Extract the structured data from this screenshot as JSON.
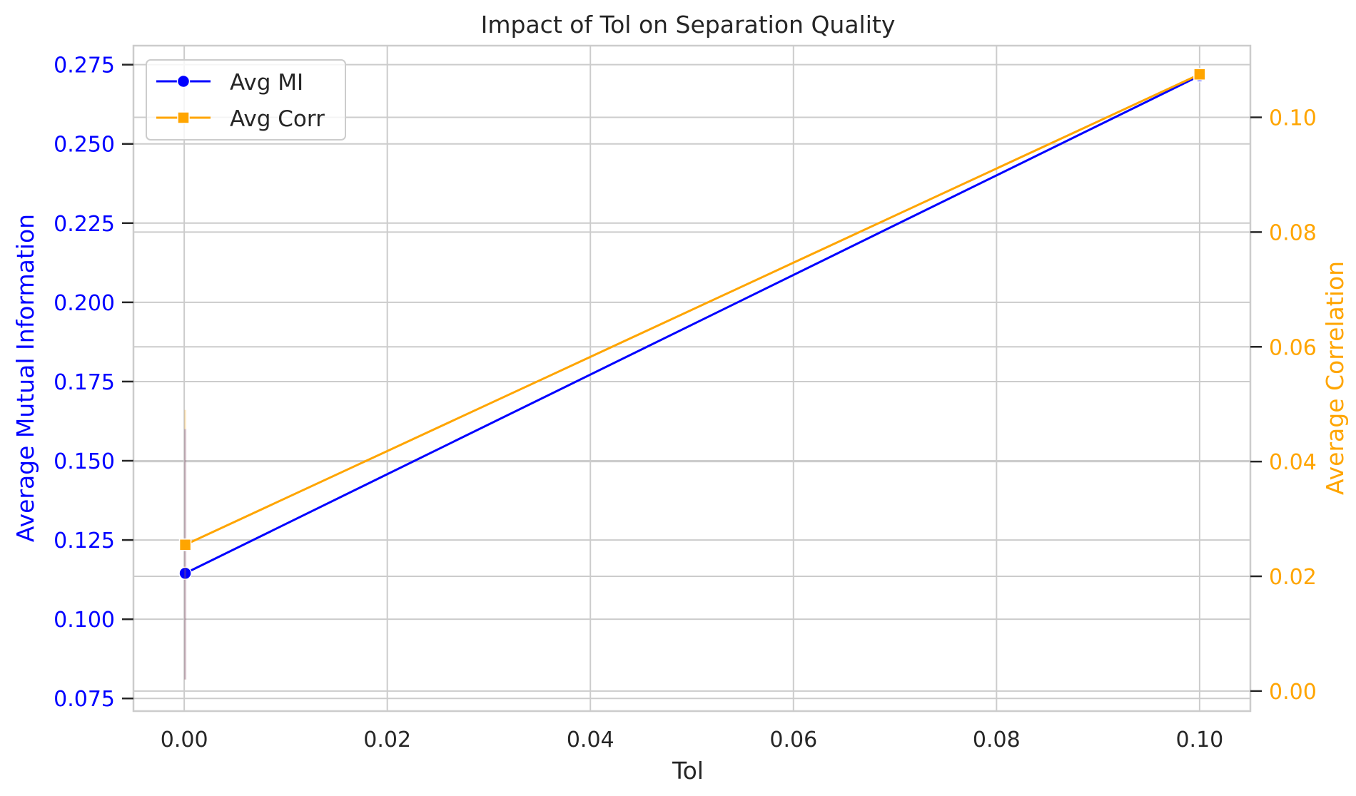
{
  "chart_data": {
    "type": "line",
    "title": "Impact of Tol on Separation Quality",
    "xlabel": "Tol",
    "ylabel_left": "Average Mutual Information",
    "ylabel_right": "Average Correlation",
    "xlim": [
      -0.005,
      0.105
    ],
    "ylim_left": [
      0.071,
      0.281
    ],
    "ylim_right": [
      -0.0035,
      0.1125
    ],
    "x_ticks": [
      0.0,
      0.02,
      0.04,
      0.06,
      0.08,
      0.1
    ],
    "x_tick_labels": [
      "0.00",
      "0.02",
      "0.04",
      "0.06",
      "0.08",
      "0.10"
    ],
    "y_left_ticks": [
      0.075,
      0.1,
      0.125,
      0.15,
      0.175,
      0.2,
      0.225,
      0.25,
      0.275
    ],
    "y_left_tick_labels": [
      "0.075",
      "0.100",
      "0.125",
      "0.150",
      "0.175",
      "0.200",
      "0.225",
      "0.250",
      "0.275"
    ],
    "y_right_ticks": [
      0.0,
      0.02,
      0.04,
      0.06,
      0.08,
      0.1
    ],
    "y_right_tick_labels": [
      "0.00",
      "0.02",
      "0.04",
      "0.06",
      "0.08",
      "0.10"
    ],
    "grid": true,
    "legend_position": "top-left",
    "series": [
      {
        "name": "Avg MI",
        "axis": "left",
        "color": "#0000ff",
        "marker": "circle",
        "x": [
          0.0001,
          0.1
        ],
        "y": [
          0.1145,
          0.2715
        ],
        "ci_low": [
          0.081,
          null
        ],
        "ci_high": [
          0.16,
          null
        ]
      },
      {
        "name": "Avg Corr",
        "axis": "right",
        "color": "#ffa500",
        "marker": "square",
        "x": [
          0.0001,
          0.1
        ],
        "y": [
          0.0255,
          0.1075
        ],
        "ci_low": [
          0.002,
          null
        ],
        "ci_high": [
          0.049,
          null
        ]
      }
    ],
    "left_axis_color": "#0000ff",
    "right_axis_color": "#ffa500",
    "text_color": "#262626",
    "grid_color": "#cccccc"
  }
}
